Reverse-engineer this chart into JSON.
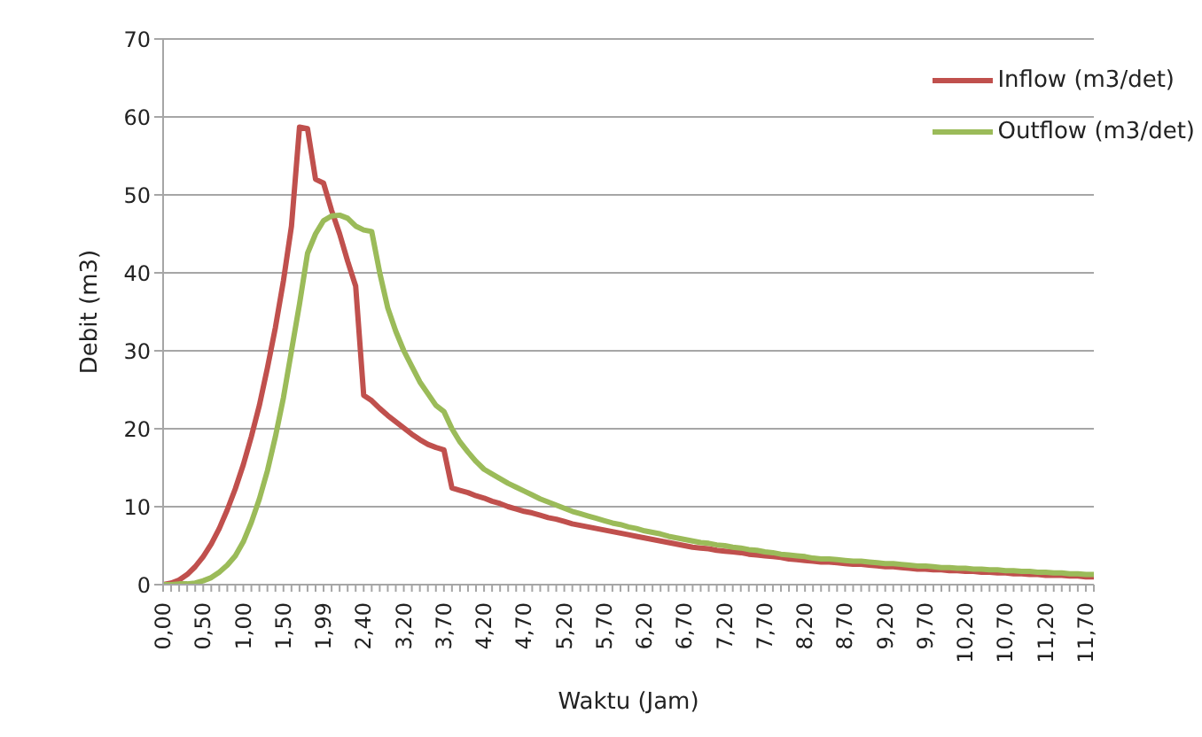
{
  "chart_data": {
    "type": "line",
    "xlabel": "Waktu (Jam)",
    "ylabel": "Debit  (m3)",
    "categories": [
      "0,00",
      null,
      null,
      null,
      null,
      "0,50",
      null,
      null,
      null,
      null,
      "1,00",
      null,
      null,
      null,
      null,
      "1,50",
      null,
      null,
      null,
      null,
      "1,99",
      null,
      null,
      null,
      null,
      "2,40",
      null,
      null,
      null,
      null,
      "3,20",
      null,
      null,
      null,
      null,
      "3,70",
      null,
      null,
      null,
      null,
      "4,20",
      null,
      null,
      null,
      null,
      "4,70",
      null,
      null,
      null,
      null,
      "5,20",
      null,
      null,
      null,
      null,
      "5,70",
      null,
      null,
      null,
      null,
      "6,20",
      null,
      null,
      null,
      null,
      "6,70",
      null,
      null,
      null,
      null,
      "7,20",
      null,
      null,
      null,
      null,
      "7,70",
      null,
      null,
      null,
      null,
      "8,20",
      null,
      null,
      null,
      null,
      "8,70",
      null,
      null,
      null,
      null,
      "9,20",
      null,
      null,
      null,
      null,
      "9,70",
      null,
      null,
      null,
      null,
      "10,20",
      null,
      null,
      null,
      null,
      "10,70",
      null,
      null,
      null,
      null,
      "11,20",
      null,
      null,
      null,
      null,
      "11,70",
      null
    ],
    "series": [
      {
        "name": "Inflow (m3/det)",
        "color": "#c0504d",
        "values": [
          0,
          0.2,
          0.6,
          1.3,
          2.3,
          3.6,
          5.2,
          7.2,
          9.6,
          12.3,
          15.4,
          19,
          23,
          27.8,
          33,
          39,
          46,
          58.7,
          58.5,
          52,
          51.5,
          48,
          45,
          41.5,
          38.3,
          24.3,
          23.6,
          22.6,
          21.7,
          20.9,
          20.1,
          19.3,
          18.6,
          18,
          17.6,
          17.3,
          12.4,
          12.1,
          11.8,
          11.4,
          11.1,
          10.7,
          10.4,
          10,
          9.7,
          9.4,
          9.2,
          8.9,
          8.6,
          8.4,
          8.1,
          7.8,
          7.6,
          7.4,
          7.2,
          7,
          6.8,
          6.6,
          6.4,
          6.2,
          6,
          5.8,
          5.6,
          5.4,
          5.2,
          5,
          4.8,
          4.7,
          4.6,
          4.4,
          4.3,
          4.2,
          4.1,
          3.9,
          3.8,
          3.7,
          3.6,
          3.5,
          3.3,
          3.2,
          3.1,
          3,
          2.9,
          2.9,
          2.8,
          2.7,
          2.6,
          2.6,
          2.5,
          2.4,
          2.3,
          2.3,
          2.2,
          2.1,
          2,
          2,
          1.9,
          1.9,
          1.8,
          1.8,
          1.7,
          1.7,
          1.6,
          1.6,
          1.5,
          1.5,
          1.4,
          1.4,
          1.3,
          1.3,
          1.2,
          1.2,
          1.2,
          1.1,
          1.1,
          1,
          1
        ]
      },
      {
        "name": "Outflow (m3/det)",
        "color": "#9bbb59",
        "values": [
          0,
          0,
          0.1,
          0.1,
          0.2,
          0.5,
          0.9,
          1.6,
          2.5,
          3.7,
          5.5,
          8,
          11,
          14.6,
          19,
          24,
          30,
          36,
          42.5,
          45,
          46.7,
          47.3,
          47.4,
          47,
          46,
          45.5,
          45.3,
          40,
          35.5,
          32.5,
          30,
          28,
          26,
          24.5,
          23,
          22.2,
          20,
          18.3,
          17,
          15.8,
          14.8,
          14.2,
          13.6,
          13,
          12.5,
          12,
          11.5,
          11,
          10.6,
          10.2,
          9.8,
          9.4,
          9.1,
          8.8,
          8.5,
          8.2,
          7.9,
          7.7,
          7.4,
          7.2,
          6.9,
          6.7,
          6.5,
          6.2,
          6,
          5.8,
          5.6,
          5.4,
          5.3,
          5.1,
          5,
          4.8,
          4.7,
          4.5,
          4.4,
          4.2,
          4.1,
          3.9,
          3.8,
          3.7,
          3.6,
          3.4,
          3.3,
          3.3,
          3.2,
          3.1,
          3,
          3,
          2.9,
          2.8,
          2.7,
          2.7,
          2.6,
          2.5,
          2.4,
          2.4,
          2.3,
          2.2,
          2.2,
          2.1,
          2.1,
          2,
          2,
          1.9,
          1.9,
          1.8,
          1.8,
          1.7,
          1.7,
          1.6,
          1.6,
          1.5,
          1.5,
          1.4,
          1.4,
          1.3,
          1.3
        ]
      }
    ],
    "ylim": [
      0,
      70
    ],
    "yticks": [
      0,
      10,
      20,
      30,
      40,
      50,
      60,
      70
    ],
    "grid": "y",
    "legend": "top right"
  }
}
